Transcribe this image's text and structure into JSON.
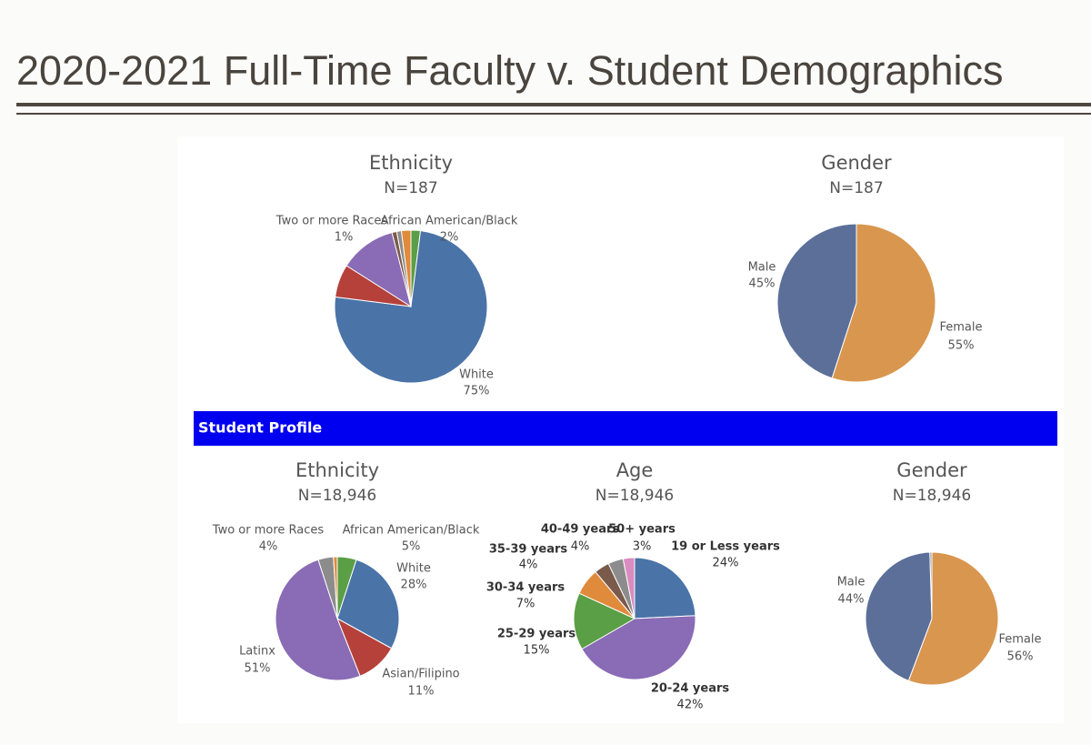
{
  "header": {
    "title": "2020-2021 Full-Time Faculty v. Student Demographics"
  },
  "banner": "Student Profile",
  "chart_data": [
    {
      "type": "pie",
      "title": "Ethnicity",
      "subtitle": "N=187",
      "categories": [
        "African American/Black",
        "White",
        null,
        null,
        null,
        "Two or more Races",
        null
      ],
      "values": [
        2,
        75,
        7,
        12,
        1,
        1,
        2
      ],
      "value_labels": [
        "2%",
        "75%",
        null,
        null,
        null,
        "1%",
        null
      ],
      "colors": [
        "#5a9e45",
        "#4a73a8",
        "#b5413a",
        "#8a6bb5",
        "#7a5a4a",
        "#8c8c8c",
        "#e08a3c"
      ]
    },
    {
      "type": "pie",
      "title": "Gender",
      "subtitle": "N=187",
      "categories": [
        "Female",
        "Male"
      ],
      "values": [
        55,
        45
      ],
      "value_labels": [
        "55%",
        "45%"
      ],
      "colors": [
        "#d9964f",
        "#5b6f99"
      ]
    },
    {
      "type": "pie",
      "title": "Ethnicity",
      "subtitle": "N=18,946",
      "categories": [
        "African American/Black",
        "White",
        "Asian/Filipino",
        "Latinx",
        "Two or more Races",
        null
      ],
      "values": [
        5,
        28,
        11,
        51,
        4,
        1
      ],
      "value_labels": [
        "5%",
        "28%",
        "11%",
        "51%",
        "4%",
        null
      ],
      "colors": [
        "#5a9e45",
        "#4a73a8",
        "#b5413a",
        "#8a6bb5",
        "#8c8c8c",
        "#e08a3c"
      ]
    },
    {
      "type": "pie",
      "title": "Age",
      "subtitle": "N=18,946",
      "categories": [
        "19 or Less years",
        "20-24 years",
        "25-29 years",
        "30-34 years",
        "35-39 years",
        "40-49 years",
        "50+ years"
      ],
      "values": [
        24,
        42,
        15,
        7,
        4,
        4,
        3
      ],
      "value_labels": [
        "24%",
        "42%",
        "15%",
        "7%",
        "4%",
        "4%",
        "3%"
      ],
      "colors": [
        "#4a73a8",
        "#8a6bb5",
        "#5a9e45",
        "#e08a3c",
        "#7a5a4a",
        "#8c8c8c",
        "#d98cc0"
      ]
    },
    {
      "type": "pie",
      "title": "Gender",
      "subtitle": "N=18,946",
      "categories": [
        "Female",
        "Male",
        null
      ],
      "values": [
        56,
        44,
        0.5
      ],
      "value_labels": [
        "56%",
        "44%",
        null
      ],
      "colors": [
        "#d9964f",
        "#5b6f99",
        "#9a9a9a"
      ]
    }
  ]
}
